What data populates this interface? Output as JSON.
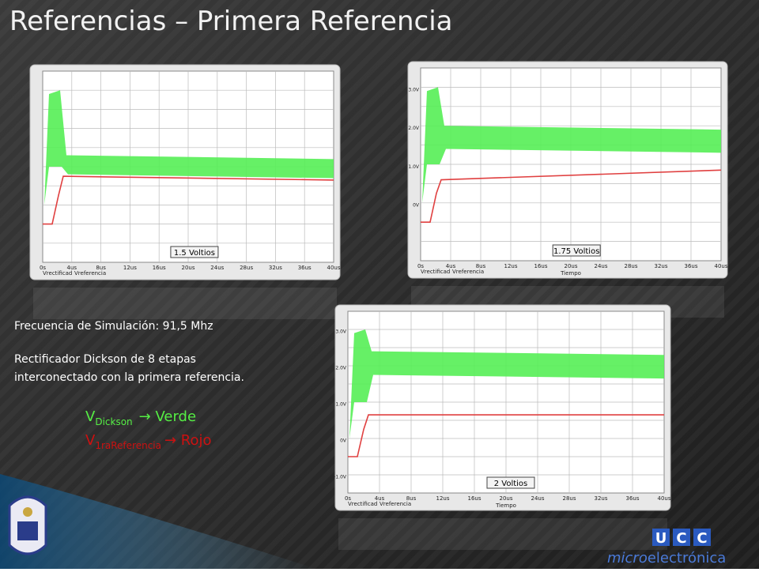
{
  "title": "Referencias – Primera Referencia",
  "text": {
    "frequency": "Frecuencia de Simulación: 91,5 Mhz",
    "description_1": "Rectificador Dickson de 8 etapas",
    "description_2": "interconectado con la primera referencia."
  },
  "legend": [
    {
      "symbol": "V",
      "sub": "Dickson",
      "label": "→ Verde"
    },
    {
      "symbol": "V",
      "sub": "1raReferencia",
      "label": "→ Rojo"
    }
  ],
  "plots": [
    {
      "label": "1.5 Voltios",
      "x_ticks": [
        "0s",
        "4us",
        "8us",
        "12us",
        "16us",
        "20us",
        "24us",
        "28us",
        "32us",
        "36us",
        "40us"
      ],
      "series_names": [
        "Vrectificad",
        "Vreferencia"
      ]
    },
    {
      "label": "1.75 Voltios",
      "x_ticks": [
        "0s",
        "4us",
        "8us",
        "12us",
        "16us",
        "20us",
        "24us",
        "28us",
        "32us",
        "36us",
        "40us"
      ],
      "x_title": "Tiempo",
      "series_names": [
        "Vrectificad",
        "Vreferencia"
      ],
      "y_ticks": [
        "3.0V",
        "2.0V",
        "1.0V",
        "0V"
      ]
    },
    {
      "label": "2 Voltios",
      "x_ticks": [
        "0s",
        "4us",
        "8us",
        "12us",
        "16us",
        "20us",
        "24us",
        "28us",
        "32us",
        "36us",
        "40us"
      ],
      "x_title": "Tiempo",
      "series_names": [
        "Vrectificad",
        "Vreferencia"
      ],
      "y_ticks": [
        "3.0V",
        "2.0V",
        "1.0V",
        "0V",
        "-1.0V"
      ]
    }
  ],
  "logo": {
    "letters": [
      "U",
      "C",
      "C"
    ],
    "micro": "micro",
    "electronica": "electrónica"
  }
}
